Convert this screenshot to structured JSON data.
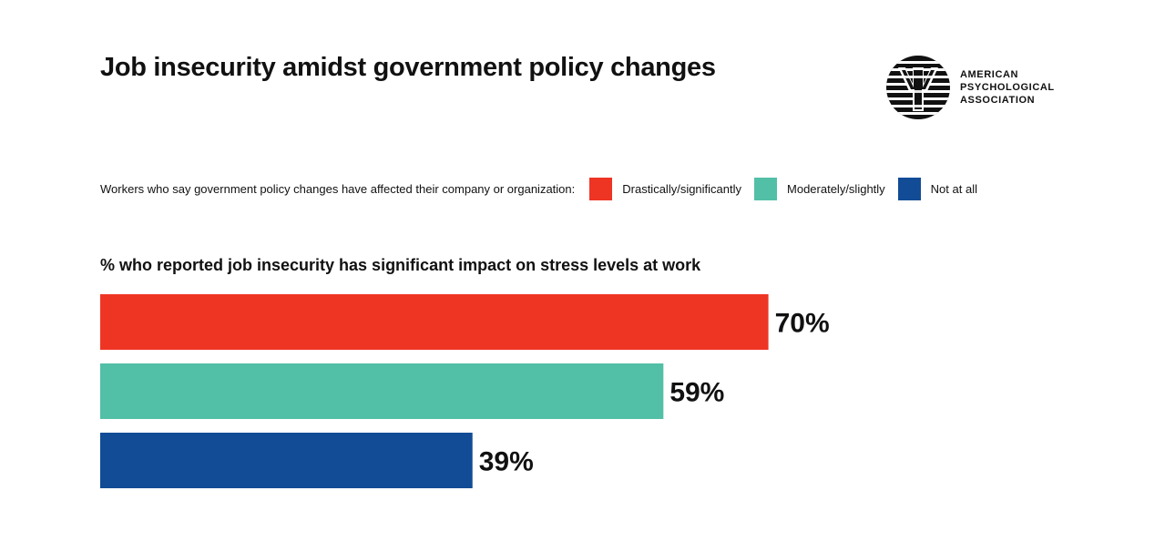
{
  "header": {
    "title": "Job insecurity amidst government policy changes"
  },
  "logo": {
    "icon": "psi-icon",
    "lines": [
      "AMERICAN",
      "PSYCHOLOGICAL",
      "ASSOCIATION"
    ]
  },
  "legend": {
    "caption": "Workers who say government policy changes have affected their company or organization:",
    "items": [
      {
        "label": "Drastically/significantly",
        "color": "#EE3524"
      },
      {
        "label": "Moderately/slightly",
        "color": "#52BFA7"
      },
      {
        "label": "Not at all",
        "color": "#124C96"
      }
    ]
  },
  "chart_data": {
    "type": "bar",
    "orientation": "horizontal",
    "title": "% who reported job insecurity has significant impact on stress levels at work",
    "categories": [
      "Drastically/significantly",
      "Moderately/slightly",
      "Not at all"
    ],
    "values": [
      70,
      59,
      39
    ],
    "labels": [
      "70%",
      "59%",
      "39%"
    ],
    "colors": [
      "#EE3524",
      "#52BFA7",
      "#124C96"
    ],
    "xlim": [
      0,
      100
    ],
    "grid": false
  }
}
